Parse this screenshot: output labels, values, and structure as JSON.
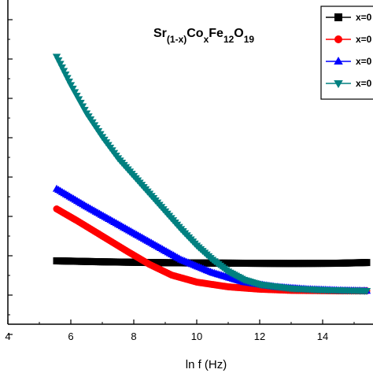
{
  "chart_data": {
    "type": "scatter",
    "title_parts": {
      "base1": "Sr",
      "sub1": "(1-x)",
      "base2": "Co",
      "sub2": "x",
      "base3": "Fe",
      "sub3": "12",
      "base4": "O",
      "sub4": "19"
    },
    "xlabel": "ln f (Hz)",
    "ylabel": "",
    "xlim": [
      4,
      15.6
    ],
    "ylim": [
      0,
      100
    ],
    "x_ticks": [
      4,
      6,
      8,
      10,
      12,
      14
    ],
    "x_tick_labels": [
      "4",
      "6",
      "8",
      "10",
      "12",
      "14"
    ],
    "legend_position": "top-right",
    "series": [
      {
        "name": "x=0",
        "color": "#000000",
        "marker": "square",
        "points": [
          [
            5.55,
            14.5
          ],
          [
            7,
            14.1
          ],
          [
            8.5,
            13.8
          ],
          [
            10,
            13.6
          ],
          [
            11.5,
            13.5
          ],
          [
            13,
            13.4
          ],
          [
            14.5,
            13.5
          ],
          [
            15.4,
            13.8
          ]
        ]
      },
      {
        "name": "x=0",
        "color": "#ff0000",
        "marker": "circle",
        "points": [
          [
            5.55,
            36.5
          ],
          [
            6.2,
            31.5
          ],
          [
            7,
            25
          ],
          [
            7.8,
            18.5
          ],
          [
            8.5,
            13
          ],
          [
            9.2,
            8.5
          ],
          [
            10,
            5.5
          ],
          [
            11,
            3.5
          ],
          [
            12,
            2.5
          ],
          [
            13,
            2
          ],
          [
            14.5,
            1.8
          ],
          [
            15.4,
            1.8
          ]
        ]
      },
      {
        "name": "x=0",
        "color": "#0000ff",
        "marker": "triangle-up",
        "points": [
          [
            5.55,
            45
          ],
          [
            6.5,
            37.5
          ],
          [
            7.5,
            30
          ],
          [
            8.5,
            22.5
          ],
          [
            9.5,
            15
          ],
          [
            10.5,
            9.5
          ],
          [
            11.5,
            5.5
          ],
          [
            12.5,
            3.5
          ],
          [
            13.5,
            2.5
          ],
          [
            14.5,
            2
          ],
          [
            15.4,
            1.8
          ]
        ]
      },
      {
        "name": "x=0",
        "color": "#008080",
        "marker": "triangle-down",
        "points": [
          [
            5.55,
            101
          ],
          [
            6,
            89
          ],
          [
            6.5,
            77
          ],
          [
            7,
            67
          ],
          [
            7.5,
            58
          ],
          [
            8,
            50.5
          ],
          [
            8.5,
            43
          ],
          [
            9,
            35.5
          ],
          [
            9.5,
            28
          ],
          [
            10,
            21
          ],
          [
            10.5,
            15
          ],
          [
            11,
            10
          ],
          [
            11.5,
            6.5
          ],
          [
            12,
            4.5
          ],
          [
            13,
            2.8
          ],
          [
            14,
            2.2
          ],
          [
            15.4,
            1.8
          ]
        ]
      }
    ]
  }
}
